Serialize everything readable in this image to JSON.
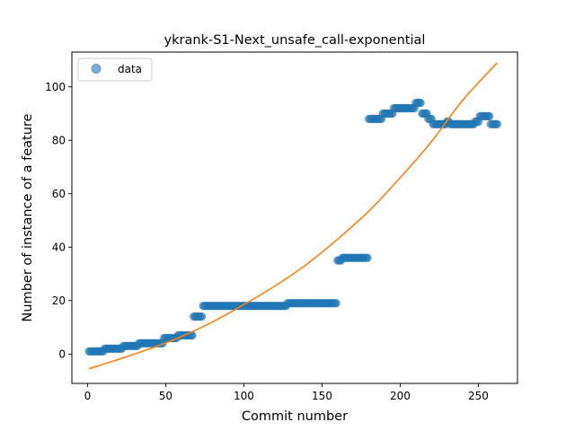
{
  "chart_data": {
    "type": "scatter",
    "title": "ykrank-S1-Next_unsafe_call-exponential",
    "xlabel": "Commit number",
    "ylabel": "Number of instance of a feature",
    "xlim": [
      -10,
      275
    ],
    "ylim": [
      -11,
      113
    ],
    "xticks": [
      0,
      50,
      100,
      150,
      200,
      250
    ],
    "yticks": [
      0,
      20,
      40,
      60,
      80,
      100
    ],
    "legend": {
      "placement": "top-left",
      "label": "data"
    },
    "colors": {
      "data": "#1f77b4",
      "fit": "#ff7f0e"
    },
    "series": [
      {
        "name": "data",
        "kind": "markers",
        "segments": [
          {
            "x_start": 1,
            "x_end": 10,
            "y": 1
          },
          {
            "x_start": 11,
            "x_end": 22,
            "y": 2
          },
          {
            "x_start": 23,
            "x_end": 32,
            "y": 3
          },
          {
            "x_start": 33,
            "x_end": 48,
            "y": 4
          },
          {
            "x_start": 49,
            "x_end": 57,
            "y": 6
          },
          {
            "x_start": 58,
            "x_end": 67,
            "y": 7
          },
          {
            "x_start": 68,
            "x_end": 73,
            "y": 14
          },
          {
            "x_start": 74,
            "x_end": 127,
            "y": 18
          },
          {
            "x_start": 128,
            "x_end": 159,
            "y": 19
          },
          {
            "x_start": 160,
            "x_end": 162,
            "y": 35
          },
          {
            "x_start": 163,
            "x_end": 179,
            "y": 36
          },
          {
            "x_start": 180,
            "x_end": 188,
            "y": 88
          },
          {
            "x_start": 189,
            "x_end": 195,
            "y": 90
          },
          {
            "x_start": 196,
            "x_end": 209,
            "y": 92
          },
          {
            "x_start": 210,
            "x_end": 213,
            "y": 94
          },
          {
            "x_start": 214,
            "x_end": 217,
            "y": 90
          },
          {
            "x_start": 218,
            "x_end": 220,
            "y": 88
          },
          {
            "x_start": 221,
            "x_end": 229,
            "y": 86
          },
          {
            "x_start": 230,
            "x_end": 231,
            "y": 87
          },
          {
            "x_start": 232,
            "x_end": 247,
            "y": 86
          },
          {
            "x_start": 248,
            "x_end": 250,
            "y": 87
          },
          {
            "x_start": 251,
            "x_end": 257,
            "y": 89
          },
          {
            "x_start": 258,
            "x_end": 262,
            "y": 86
          }
        ]
      },
      {
        "kind": "line",
        "x": [
          1,
          20,
          40,
          60,
          80,
          100,
          120,
          140,
          160,
          180,
          200,
          220,
          240,
          262
        ],
        "y": [
          -5.5,
          -2.0,
          2.0,
          6.5,
          12.0,
          18.5,
          25.5,
          33.5,
          43.0,
          53.5,
          66.0,
          79.5,
          95.0,
          109.0
        ]
      }
    ]
  }
}
